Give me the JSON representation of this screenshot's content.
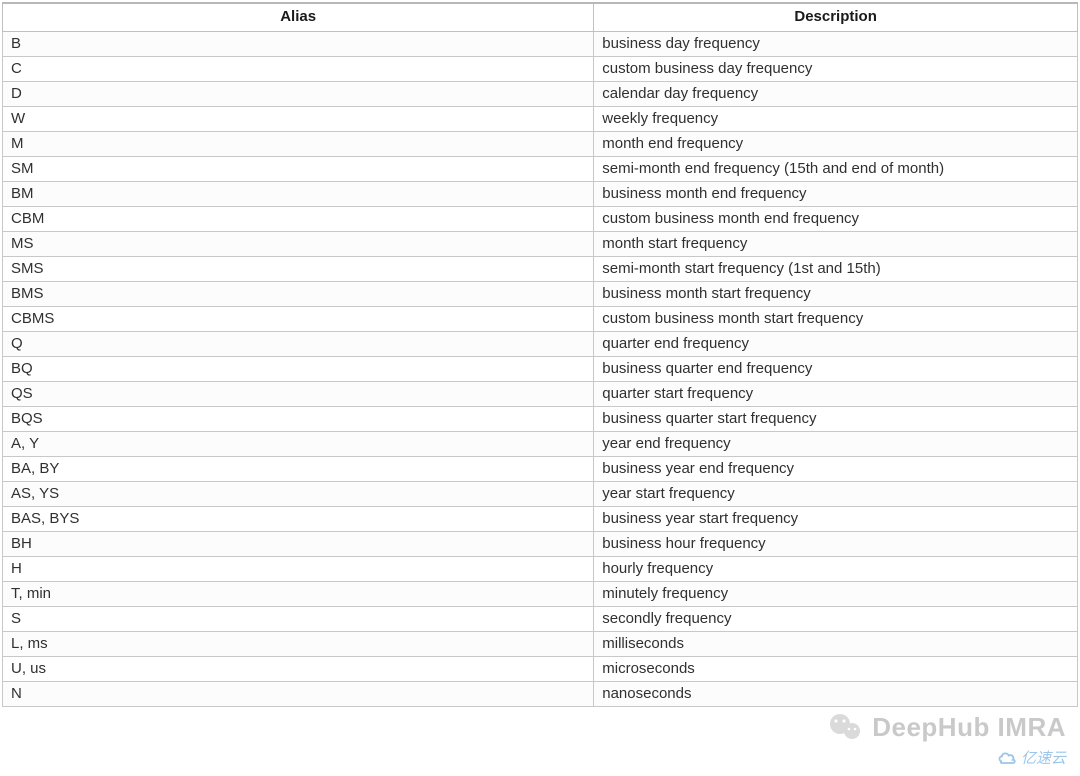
{
  "table": {
    "type": "table",
    "background_color": "#ffffff",
    "border_color": "#c8c8c8",
    "header_border_top_color": "#b8b8b8",
    "header_fontsize": 15,
    "header_fontweight": 700,
    "header_color": "#1a1a1a",
    "cell_fontsize": 15,
    "cell_color": "#303030",
    "row_odd_bg": "#fcfcfc",
    "row_even_bg": "#ffffff",
    "column_widths_pct": [
      55,
      45
    ],
    "columns": [
      "Alias",
      "Description"
    ],
    "rows": [
      {
        "alias": "B",
        "description": "business day frequency"
      },
      {
        "alias": "C",
        "description": "custom business day frequency"
      },
      {
        "alias": "D",
        "description": "calendar day frequency"
      },
      {
        "alias": "W",
        "description": "weekly frequency"
      },
      {
        "alias": "M",
        "description": "month end frequency"
      },
      {
        "alias": "SM",
        "description": "semi-month end frequency (15th and end of month)"
      },
      {
        "alias": "BM",
        "description": "business month end frequency"
      },
      {
        "alias": "CBM",
        "description": "custom business month end frequency"
      },
      {
        "alias": "MS",
        "description": "month start frequency"
      },
      {
        "alias": "SMS",
        "description": "semi-month start frequency (1st and 15th)"
      },
      {
        "alias": "BMS",
        "description": "business month start frequency"
      },
      {
        "alias": "CBMS",
        "description": "custom business month start frequency"
      },
      {
        "alias": "Q",
        "description": "quarter end frequency"
      },
      {
        "alias": "BQ",
        "description": "business quarter end frequency"
      },
      {
        "alias": "QS",
        "description": "quarter start frequency"
      },
      {
        "alias": "BQS",
        "description": "business quarter start frequency"
      },
      {
        "alias": "A, Y",
        "description": "year end frequency"
      },
      {
        "alias": "BA, BY",
        "description": "business year end frequency"
      },
      {
        "alias": "AS, YS",
        "description": "year start frequency"
      },
      {
        "alias": "BAS, BYS",
        "description": "business year start frequency"
      },
      {
        "alias": "BH",
        "description": "business hour frequency"
      },
      {
        "alias": "H",
        "description": "hourly frequency"
      },
      {
        "alias": "T, min",
        "description": "minutely frequency"
      },
      {
        "alias": "S",
        "description": "secondly frequency"
      },
      {
        "alias": "L, ms",
        "description": "milliseconds"
      },
      {
        "alias": "U, us",
        "description": "microseconds"
      },
      {
        "alias": "N",
        "description": "nanoseconds"
      }
    ]
  },
  "watermarks": {
    "deephub": {
      "text": "DeepHub IMRA",
      "color": "#7a7a7a",
      "opacity": 0.4,
      "fontsize": 26,
      "icon_name": "wechat-icon",
      "icon_color": "#7d7d7d",
      "icon_opacity": 0.28
    },
    "yisu": {
      "text": "亿速云",
      "color": "#3a8fd6",
      "opacity": 0.5,
      "fontsize": 15,
      "icon_name": "cloud-icon",
      "icon_stroke": "#3a8fd6"
    }
  }
}
